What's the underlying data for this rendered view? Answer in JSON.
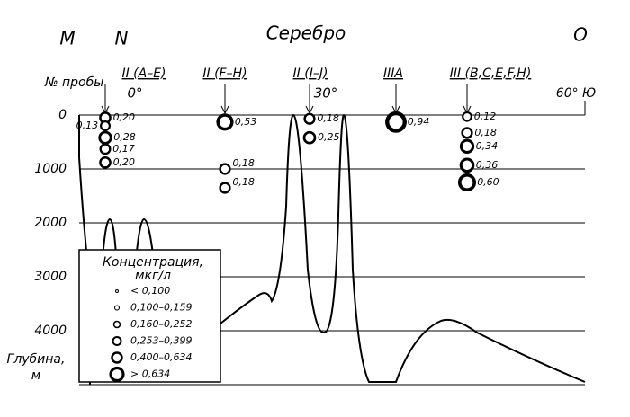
{
  "chart_data": {
    "type": "scatter",
    "title": "Серебро",
    "top_labels": [
      "M",
      "N",
      "O"
    ],
    "station_header": "№ пробы",
    "degree_labels": [
      "0°",
      "30°",
      "60° Ю"
    ],
    "stations": [
      {
        "name": "II (A–E)",
        "depths": [
          50,
          200,
          420,
          630,
          880
        ],
        "values": [
          0.2,
          0.13,
          0.28,
          0.17,
          0.2
        ],
        "value_labels": [
          "0,20",
          "0,13",
          "0,28",
          "0,17",
          "0,20"
        ]
      },
      {
        "name": "II (F–H)",
        "depths": [
          130,
          1000,
          1350
        ],
        "values": [
          0.53,
          0.18,
          0.18
        ],
        "value_labels": [
          "0,53",
          "0,18",
          "0,18"
        ]
      },
      {
        "name": "II (I–J)",
        "depths": [
          70,
          420
        ],
        "values": [
          0.18,
          0.25
        ],
        "value_labels": [
          "0,18",
          "0,25"
        ]
      },
      {
        "name": "IIIA",
        "depths": [
          130
        ],
        "values": [
          0.94
        ],
        "value_labels": [
          "0,94"
        ]
      },
      {
        "name": "III (B,C,E,F,H)",
        "depths": [
          30,
          330,
          580,
          930,
          1250
        ],
        "values": [
          0.12,
          0.18,
          0.34,
          0.36,
          0.6
        ],
        "value_labels": [
          "0,12",
          "0,18",
          "0,34",
          "0,36",
          "0,60"
        ]
      }
    ],
    "ylabel": [
      "Глубина,",
      "м"
    ],
    "ylim": [
      0,
      5000
    ],
    "yticks": [
      0,
      1000,
      2000,
      3000,
      4000
    ],
    "grid": true,
    "legend": {
      "title": [
        "Концентрация,",
        "мкг/л"
      ],
      "items": [
        "< 0,100",
        "0,100–0,159",
        "0,160–0,252",
        "0,253–0,399",
        "0,400–0,634",
        "> 0,634"
      ]
    }
  }
}
